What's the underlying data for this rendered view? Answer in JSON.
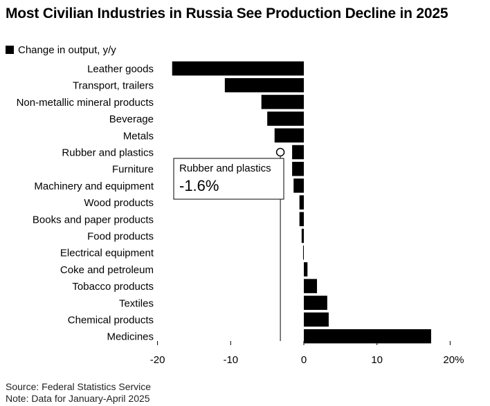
{
  "title": "Most Civilian Industries in Russia See Production Decline in 2025",
  "legend": {
    "label": "Change in output, y/y"
  },
  "chart_data": {
    "type": "bar",
    "orientation": "horizontal",
    "title": "Most Civilian Industries in Russia See Production Decline in 2025",
    "series": [
      {
        "name": "Change in output, y/y",
        "values": [
          -18.0,
          -10.8,
          -5.8,
          -5.0,
          -4.0,
          -1.6,
          -1.6,
          -1.4,
          -0.6,
          -0.6,
          -0.3,
          -0.1,
          0.5,
          1.8,
          3.2,
          3.4,
          17.4
        ]
      }
    ],
    "categories": [
      "Leather goods",
      "Transport, trailers",
      "Non-metallic mineral products",
      "Beverage",
      "Metals",
      "Rubber and plastics",
      "Furniture",
      "Machinery and equipment",
      "Wood products",
      "Books and paper products",
      "Food products",
      "Electrical equipment",
      "Coke and petroleum",
      "Tobacco products",
      "Textiles",
      "Chemical products",
      "Medicines"
    ],
    "xlim": [
      -20,
      20
    ],
    "ticks": [
      -20,
      -10,
      0,
      10,
      20
    ],
    "tick_labels": [
      "-20",
      "-10",
      "0",
      "10",
      "20%"
    ],
    "xlabel": "",
    "ylabel": "",
    "annotation": {
      "category": "Rubber and plastics",
      "label": "Rubber and plastics",
      "value_text": "-1.6%"
    }
  },
  "footer": {
    "source": "Source: Federal Statistics Service",
    "note": "Note: Data for January-April 2025"
  },
  "colors": {
    "bar": "#000000",
    "text": "#000000",
    "background": "#ffffff"
  }
}
